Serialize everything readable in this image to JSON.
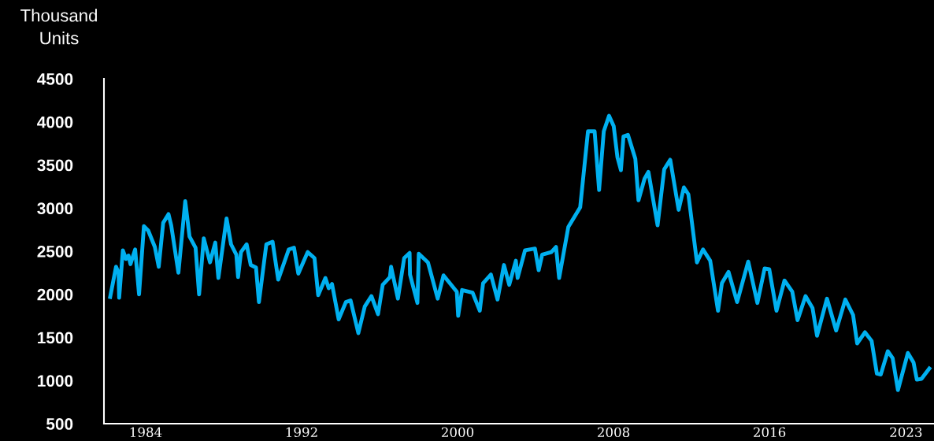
{
  "chart_data": {
    "type": "line",
    "ylabel": "Thousand Units",
    "x": [
      1982.18,
      1982.48,
      1982.61,
      1982.64,
      1982.83,
      1982.99,
      1983.12,
      1983.22,
      1983.46,
      1983.66,
      1983.91,
      1984.13,
      1984.47,
      1984.67,
      1984.9,
      1985.17,
      1985.31,
      1985.68,
      1986.03,
      1986.25,
      1986.56,
      1986.74,
      1986.98,
      1987.3,
      1987.57,
      1987.73,
      1988.15,
      1988.38,
      1988.65,
      1988.74,
      1988.89,
      1989.18,
      1989.39,
      1989.66,
      1989.81,
      1990.19,
      1990.51,
      1990.8,
      1991.34,
      1991.61,
      1991.83,
      1992.31,
      1992.66,
      1992.85,
      1993.22,
      1993.39,
      1993.56,
      1993.9,
      1994.27,
      1994.51,
      1994.91,
      1995.24,
      1995.58,
      1995.92,
      1996.16,
      1996.53,
      1996.59,
      1996.94,
      1997.26,
      1997.54,
      1997.56,
      1997.94,
      1998.01,
      1998.48,
      1998.98,
      1999.28,
      1999.96,
      2000.03,
      2000.23,
      2000.77,
      2001.14,
      2001.31,
      2001.71,
      2002.05,
      2002.38,
      2002.65,
      2002.99,
      2003.08,
      2003.46,
      2003.97,
      2004.16,
      2004.34,
      2004.81,
      2005.05,
      2005.21,
      2005.68,
      2006.29,
      2006.69,
      2007.03,
      2007.26,
      2007.5,
      2007.77,
      2008.01,
      2008.2,
      2008.38,
      2008.51,
      2008.74,
      2009.12,
      2009.28,
      2009.59,
      2009.79,
      2010.26,
      2010.6,
      2010.91,
      2011.34,
      2011.61,
      2011.84,
      2012.28,
      2012.59,
      2012.96,
      2013.36,
      2013.56,
      2013.9,
      2014.34,
      2014.91,
      2015.38,
      2015.75,
      2015.99,
      2016.36,
      2016.77,
      2017.17,
      2017.44,
      2017.85,
      2018.21,
      2018.44,
      2018.95,
      2019.42,
      2019.89,
      2020.29,
      2020.5,
      2020.9,
      2021.24,
      2021.51,
      2021.71,
      2022.07,
      2022.32,
      2022.59,
      2023.1,
      2023.39,
      2023.56,
      2023.8,
      2024.2
    ],
    "series": [
      {
        "color": "#00b0f0",
        "values": [
          1970,
          2320,
          2250,
          1960,
          2510,
          2410,
          2450,
          2350,
          2520,
          2000,
          2790,
          2740,
          2550,
          2320,
          2830,
          2930,
          2800,
          2250,
          3080,
          2670,
          2540,
          2000,
          2650,
          2370,
          2600,
          2190,
          2880,
          2580,
          2460,
          2200,
          2490,
          2580,
          2340,
          2310,
          1910,
          2580,
          2610,
          2170,
          2520,
          2540,
          2240,
          2490,
          2420,
          1990,
          2190,
          2070,
          2120,
          1710,
          1910,
          1930,
          1550,
          1860,
          1980,
          1770,
          2110,
          2200,
          2320,
          1950,
          2420,
          2480,
          2230,
          1900,
          2470,
          2370,
          1950,
          2220,
          2030,
          1750,
          2050,
          2020,
          1810,
          2130,
          2230,
          1940,
          2340,
          2110,
          2390,
          2190,
          2510,
          2530,
          2280,
          2460,
          2490,
          2550,
          2190,
          2780,
          3010,
          3890,
          3890,
          3210,
          3890,
          4070,
          3950,
          3590,
          3440,
          3830,
          3850,
          3570,
          3090,
          3340,
          3420,
          2800,
          3450,
          3560,
          2980,
          3240,
          3160,
          2370,
          2520,
          2390,
          1810,
          2130,
          2260,
          1910,
          2380,
          1900,
          2300,
          2290,
          1810,
          2160,
          2030,
          1700,
          1980,
          1840,
          1520,
          1950,
          1580,
          1940,
          1760,
          1430,
          1560,
          1460,
          1080,
          1070,
          1340,
          1260,
          890,
          1320,
          1210,
          1010,
          1020,
          1140
        ]
      }
    ],
    "xlim": [
      1981.86,
      2024.44
    ],
    "ylim": [
      500,
      4500
    ],
    "xticks": [
      1984,
      1992,
      2000,
      2008,
      2016,
      2023
    ],
    "yticks": [
      500,
      1000,
      1500,
      2000,
      2500,
      3000,
      3500,
      4000,
      4500
    ],
    "grid": false,
    "legend": false,
    "marker": "none",
    "line_style": "solid"
  }
}
